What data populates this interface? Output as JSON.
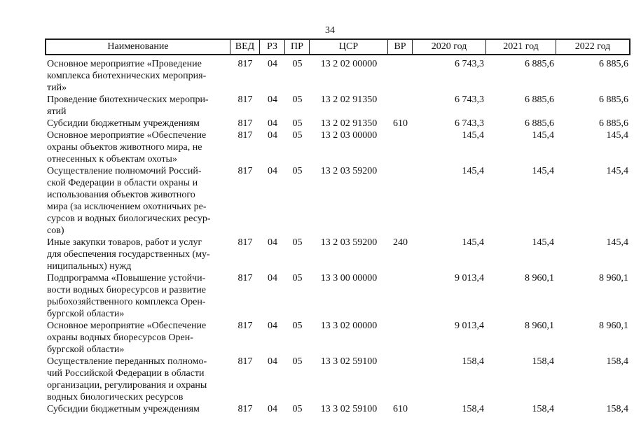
{
  "page_number": "34",
  "table": {
    "headers": [
      "Наименование",
      "ВЕД",
      "РЗ",
      "ПР",
      "ЦСР",
      "ВР",
      "2020 год",
      "2021 год",
      "2022 год"
    ],
    "rows": [
      {
        "name": [
          "Основное мероприятие «Проведение",
          "комплекса биотехнических мероприя-",
          "тий»"
        ],
        "ved": "817",
        "rz": "04",
        "pr": "05",
        "csr": "13 2 02 00000",
        "vr": "",
        "y2020": "6 743,3",
        "y2021": "6 885,6",
        "y2022": "6 885,6"
      },
      {
        "name": [
          "Проведение биотехнических меропри-",
          "ятий"
        ],
        "ved": "817",
        "rz": "04",
        "pr": "05",
        "csr": "13 2 02 91350",
        "vr": "",
        "y2020": "6 743,3",
        "y2021": "6 885,6",
        "y2022": "6 885,6"
      },
      {
        "name": [
          "Субсидии бюджетным учреждениям"
        ],
        "ved": "817",
        "rz": "04",
        "pr": "05",
        "csr": "13 2 02 91350",
        "vr": "610",
        "y2020": "6 743,3",
        "y2021": "6 885,6",
        "y2022": "6 885,6"
      },
      {
        "name": [
          "Основное мероприятие «Обеспечение",
          "охраны объектов животного мира, не",
          "отнесенных к объектам охоты»"
        ],
        "ved": "817",
        "rz": "04",
        "pr": "05",
        "csr": "13 2 03 00000",
        "vr": "",
        "y2020": "145,4",
        "y2021": "145,4",
        "y2022": "145,4"
      },
      {
        "name": [
          "Осуществление полномочий Россий-",
          "ской Федерации в области охраны и",
          "использования объектов животного",
          "мира (за исключением охотничьих ре-",
          "сурсов и водных биологических ресур-",
          "сов)"
        ],
        "ved": "817",
        "rz": "04",
        "pr": "05",
        "csr": "13 2 03 59200",
        "vr": "",
        "y2020": "145,4",
        "y2021": "145,4",
        "y2022": "145,4"
      },
      {
        "name": [
          "Иные закупки товаров, работ и услуг",
          "для обеспечения государственных (му-",
          "ниципальных) нужд"
        ],
        "ved": "817",
        "rz": "04",
        "pr": "05",
        "csr": "13 2 03 59200",
        "vr": "240",
        "y2020": "145,4",
        "y2021": "145,4",
        "y2022": "145,4"
      },
      {
        "name": [
          "Подпрограмма «Повышение устойчи-",
          "вости водных биоресурсов и развитие",
          "рыбохозяйственного комплекса Орен-",
          "бургской области»"
        ],
        "ved": "817",
        "rz": "04",
        "pr": "05",
        "csr": "13 3 00 00000",
        "vr": "",
        "y2020": "9 013,4",
        "y2021": "8 960,1",
        "y2022": "8 960,1"
      },
      {
        "name": [
          "Основное мероприятие «Обеспечение",
          "охраны водных биоресурсов Орен-",
          "бургской области»"
        ],
        "ved": "817",
        "rz": "04",
        "pr": "05",
        "csr": "13 3 02 00000",
        "vr": "",
        "y2020": "9 013,4",
        "y2021": "8 960,1",
        "y2022": "8 960,1"
      },
      {
        "name": [
          "Осуществление переданных полномо-",
          "чий Российской Федерации в области",
          "организации, регулирования и охраны",
          "водных биологических ресурсов"
        ],
        "ved": "817",
        "rz": "04",
        "pr": "05",
        "csr": "13 3 02 59100",
        "vr": "",
        "y2020": "158,4",
        "y2021": "158,4",
        "y2022": "158,4"
      },
      {
        "name": [
          "Субсидии бюджетным учреждениям"
        ],
        "ved": "817",
        "rz": "04",
        "pr": "05",
        "csr": "13 3 02 59100",
        "vr": "610",
        "y2020": "158,4",
        "y2021": "158,4",
        "y2022": "158,4"
      }
    ]
  }
}
